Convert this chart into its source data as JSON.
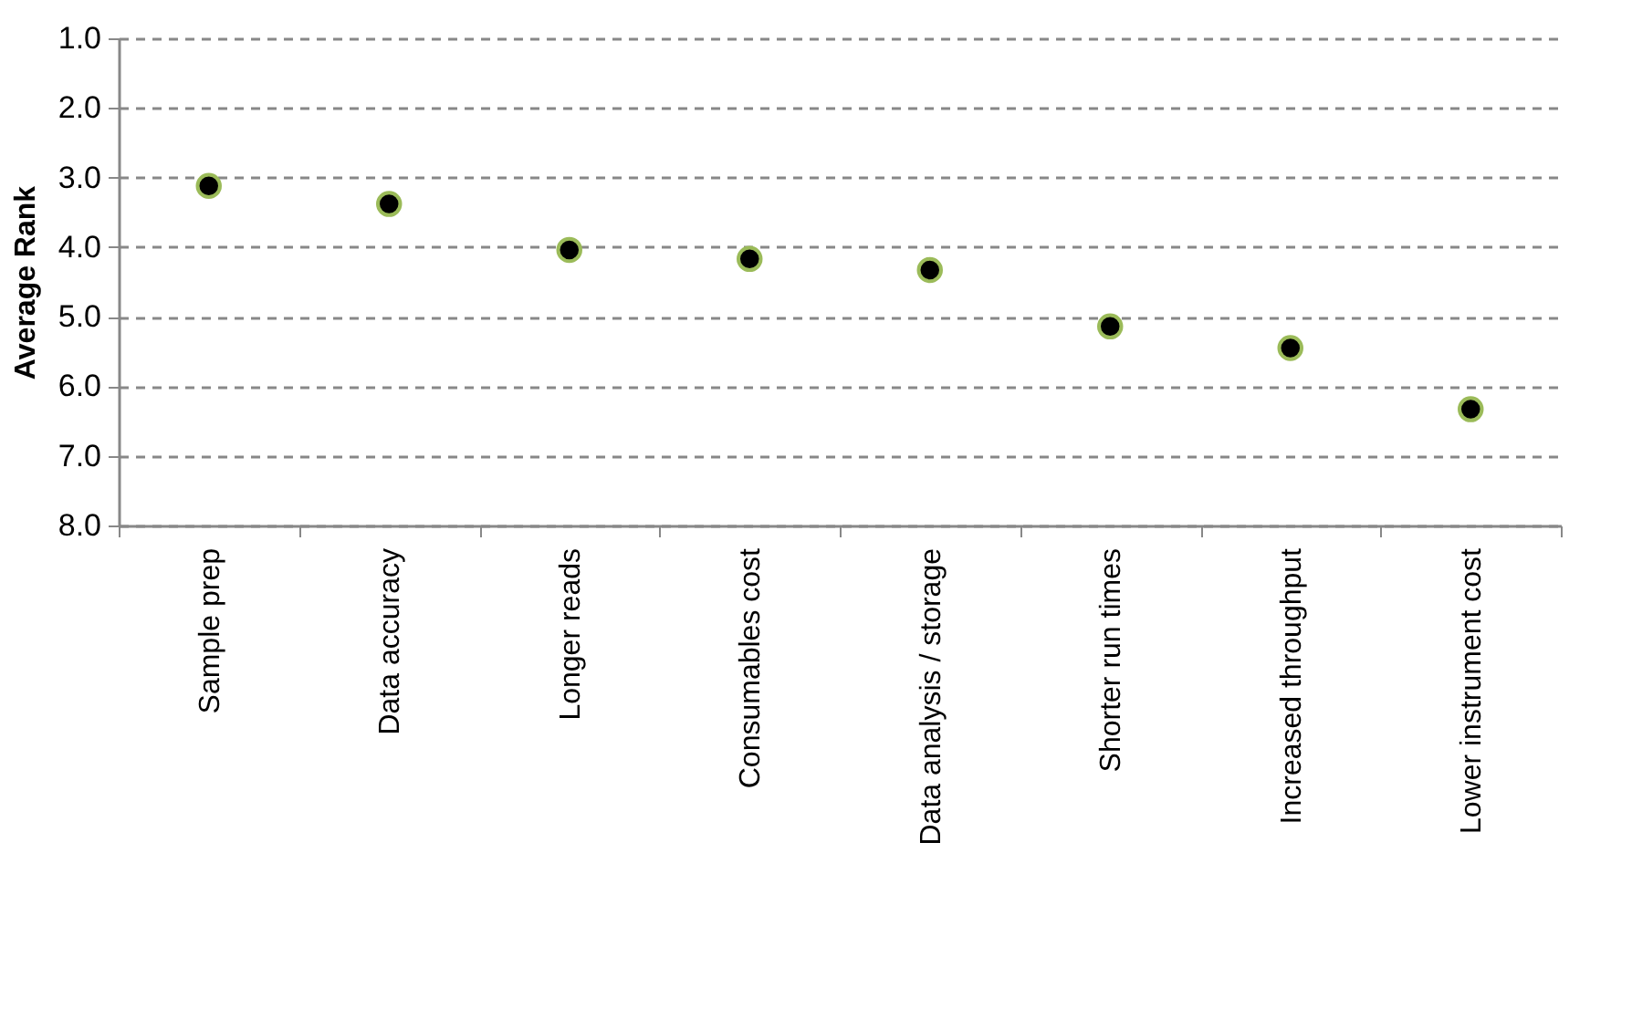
{
  "chart_data": {
    "type": "scatter",
    "ylabel": "Average Rank",
    "categories": [
      "Sample prep",
      "Data accuracy",
      "Longer reads",
      "Consumables cost",
      "Data analysis / storage",
      "Shorter run times",
      "Increased throughput",
      "Lower instrument cost"
    ],
    "series": [
      {
        "color": "#000000",
        "values": [
          3.12,
          3.38,
          4.04,
          4.17,
          4.33,
          5.14,
          5.45,
          6.33
        ]
      }
    ],
    "ylim": [
      8.0,
      1.0
    ],
    "yticks": [
      {
        "value": 1,
        "label": "1.0"
      },
      {
        "value": 2,
        "label": "2.0"
      },
      {
        "value": 3,
        "label": "3.0"
      },
      {
        "value": 4,
        "label": "4.0"
      },
      {
        "value": 5,
        "label": "5.0"
      },
      {
        "value": 6,
        "label": "6.0"
      },
      {
        "value": 7,
        "label": "7.0"
      },
      {
        "value": 8,
        "label": "8.0"
      }
    ],
    "grid": "y",
    "line_style": "dashed",
    "marker": "circle",
    "legend": false
  }
}
